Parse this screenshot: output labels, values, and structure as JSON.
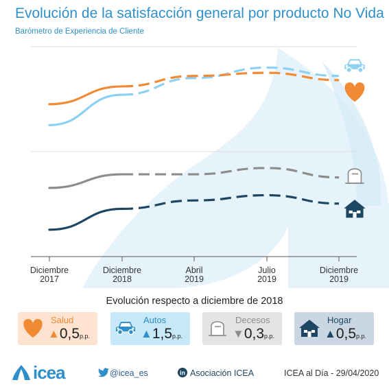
{
  "header": {
    "title": "Evolución de la satisfacción general por producto No Vida",
    "subtitle": "Barómetro de Experiencia de Cliente"
  },
  "chart_data": {
    "type": "line",
    "x": [
      "Diciembre 2017",
      "Diciembre 2018",
      "Abril 2019",
      "Julio 2019",
      "Diciembre 2019"
    ],
    "tick_labels": [
      {
        "line1": "Diciembre",
        "line2": "2017"
      },
      {
        "line1": "Diciembre",
        "line2": "2018"
      },
      {
        "line1": "Abril",
        "line2": "2019"
      },
      {
        "line1": "Julio",
        "line2": "2019"
      },
      {
        "line1": "Diciembre",
        "line2": "2019"
      }
    ],
    "y_axis_labels": "none",
    "grid": "horizontal",
    "solid_until": "Diciembre 2018",
    "dashed_after": "Diciembre 2018",
    "series": [
      {
        "icon": "car-icon",
        "color": "#8dd0f2",
        "values": [
          0.25,
          0.54,
          0.7,
          0.8,
          0.72
        ]
      },
      {
        "icon": "heart-icon",
        "color": "#f08a34",
        "values": [
          0.45,
          0.62,
          0.72,
          0.75,
          0.68
        ]
      },
      {
        "icon": "tombstone-icon",
        "color": "#8c8c8c",
        "values": [
          -0.35,
          -0.22,
          -0.22,
          -0.16,
          -0.25
        ]
      },
      {
        "icon": "house-icon",
        "color": "#1d4663",
        "values": [
          -0.75,
          -0.55,
          -0.47,
          -0.42,
          -0.5
        ]
      }
    ]
  },
  "evolution": {
    "title": "Evolución respecto a diciembre de 2018",
    "cards": [
      {
        "name": "Salud",
        "direction": "▲",
        "value": "0,5",
        "unit": "p.p.",
        "icon": "heart-icon",
        "bg": "#fde3d0",
        "name_color": "#f08a34",
        "arrow_color": "#f08a34"
      },
      {
        "name": "Autos",
        "direction": "▲",
        "value": "1,5",
        "unit": "p.p.",
        "icon": "car-icon",
        "bg": "#c6e8f8",
        "name_color": "#2e8fc9",
        "arrow_color": "#2e8fc9"
      },
      {
        "name": "Decesos",
        "direction": "▼",
        "value": "0,3",
        "unit": "p.p.",
        "icon": "tombstone-icon",
        "bg": "#e4e4e4",
        "name_color": "#8c8c8c",
        "arrow_color": "#8c8c8c"
      },
      {
        "name": "Hogar",
        "direction": "▲",
        "value": "0,5",
        "unit": "p.p.",
        "icon": "house-icon",
        "bg": "#cad7e2",
        "name_color": "#1d4663",
        "arrow_color": "#1d4663"
      }
    ]
  },
  "footer": {
    "logo": "icea",
    "twitter": "@icea_es",
    "linkedin": "Asociación ICEA",
    "source": "ICEA al Día - 29/04/2020"
  }
}
